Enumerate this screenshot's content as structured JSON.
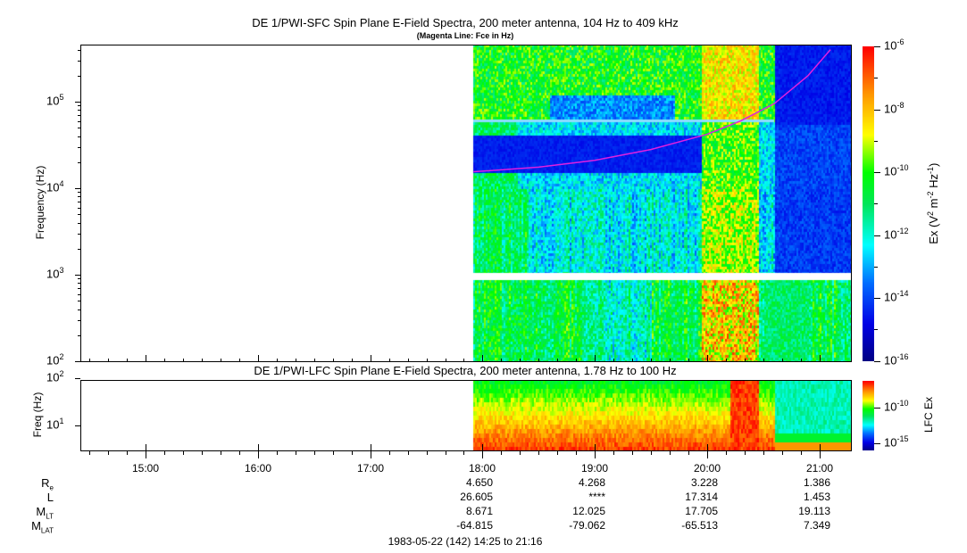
{
  "chart_data": [
    {
      "type": "heatmap",
      "title": "DE 1/PWI-SFC  Spin Plane E-Field Spectra, 200 meter antenna, 104 Hz to 409 kHz",
      "subtitle": "(Magenta Line: Fce in Hz)",
      "ylabel": "Frequency (Hz)",
      "yscale": "log",
      "ylim": [
        100,
        409000
      ],
      "ytick_labels": [
        {
          "base": "10",
          "exp": "2"
        },
        {
          "base": "10",
          "exp": "3"
        },
        {
          "base": "10",
          "exp": "4"
        },
        {
          "base": "10",
          "exp": "5"
        }
      ],
      "colorbar": {
        "label": "Ex (V",
        "label_full": "Ex (V2 m-2 Hz-1)",
        "range": [
          1e-16,
          1e-06
        ],
        "tick_labels": [
          {
            "base": "10",
            "exp": "-6"
          },
          {
            "base": "10",
            "exp": "-8"
          },
          {
            "base": "10",
            "exp": "-10"
          },
          {
            "base": "10",
            "exp": "-12"
          },
          {
            "base": "10",
            "exp": "-14"
          },
          {
            "base": "10",
            "exp": "-16"
          }
        ]
      },
      "data_start": "17:55",
      "data_end": "21:16",
      "fce_line": {
        "color": "#e020e0",
        "times_hr": [
          17.92,
          18.5,
          19.0,
          19.5,
          20.0,
          20.3,
          20.6,
          20.9,
          21.1
        ],
        "freq_hz": [
          15500,
          17500,
          21000,
          28000,
          42000,
          60000,
          95000,
          200000,
          400000
        ]
      }
    },
    {
      "type": "heatmap",
      "title": "DE 1/PWI-LFC  Spin Plane E-Field Spectra, 200 meter antenna, 1.78 Hz to 100 Hz",
      "ylabel": "Freq (Hz)",
      "yscale": "log",
      "ylim": [
        3,
        100
      ],
      "ytick_labels": [
        {
          "base": "10",
          "exp": "1"
        },
        {
          "base": "10",
          "exp": "2"
        }
      ],
      "colorbar": {
        "label": "LFC Ex",
        "tick_labels": [
          {
            "base": "10",
            "exp": "-10"
          },
          {
            "base": "10",
            "exp": "-15"
          }
        ]
      }
    }
  ],
  "x_axis": {
    "range": [
      "14:25",
      "21:16"
    ],
    "tick_labels": [
      "15:00",
      "16:00",
      "17:00",
      "18:00",
      "19:00",
      "20:00",
      "21:00"
    ]
  },
  "ephemeris": {
    "rows": [
      {
        "label": "R",
        "sub": "e",
        "values": [
          "",
          "",
          "",
          "4.650",
          "4.268",
          "3.228",
          "1.386"
        ]
      },
      {
        "label": "L",
        "sub": "",
        "values": [
          "",
          "",
          "",
          "26.605",
          "****",
          "17.314",
          "1.453"
        ]
      },
      {
        "label": "M",
        "sub": "LT",
        "values": [
          "",
          "",
          "",
          "8.671",
          "12.025",
          "17.705",
          "19.113"
        ]
      },
      {
        "label": "M",
        "sub": "LAT",
        "values": [
          "",
          "",
          "",
          "-64.815",
          "-79.062",
          "-65.513",
          "7.349"
        ]
      }
    ]
  },
  "footer": "1983-05-22 (142) 14:25 to 21:16"
}
